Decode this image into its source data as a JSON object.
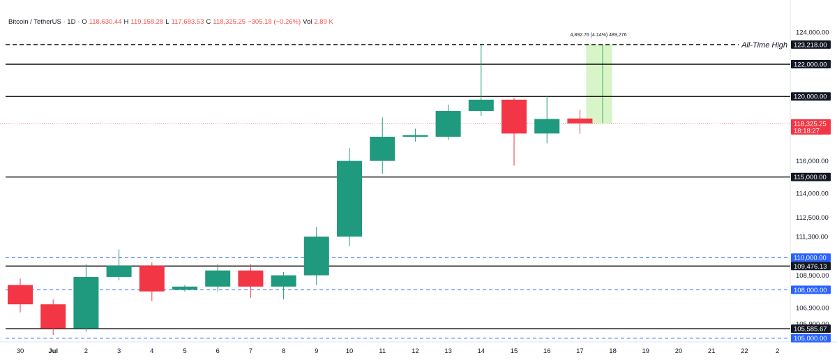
{
  "header": {
    "symbol": "Bitcoin / TetherUS · 1D ·",
    "open_label": "O",
    "open": "118,630.44",
    "high_label": "H",
    "high": "119,158.28",
    "low_label": "L",
    "low": "117,683.53",
    "close_label": "C",
    "close": "118,325.25",
    "change": "−305.18 (−0.26%)",
    "vol_label": "Vol",
    "vol": "2.89 K"
  },
  "colors": {
    "up": "#1f9a7e",
    "down": "#f23645",
    "blue_line": "#2962ff",
    "black_line": "#000000",
    "measure_fill": "#c9f2b5",
    "measure_line": "#4caf50",
    "price_tag": "#f23645"
  },
  "chart_data": {
    "type": "candlestick",
    "x_tick_labels": [
      "30",
      "Jul",
      "2",
      "3",
      "4",
      "5",
      "6",
      "7",
      "8",
      "9",
      "10",
      "11",
      "12",
      "13",
      "14",
      "15",
      "16",
      "17",
      "18",
      "19",
      "20",
      "21",
      "22",
      "2"
    ],
    "y_tick_labels": [
      "124,000.00",
      "116,000.00",
      "114,000.00",
      "112,500.00",
      "111,300.00",
      "108,900.00",
      "106,900.00",
      "105,900.00"
    ],
    "ylim": [
      104900,
      124600
    ],
    "candles": [
      {
        "date": "30",
        "o": 108300,
        "h": 108700,
        "l": 106600,
        "c": 107100
      },
      {
        "date": "Jul",
        "o": 107100,
        "h": 107400,
        "l": 105200,
        "c": 105600
      },
      {
        "date": "2",
        "o": 105600,
        "h": 109600,
        "l": 105400,
        "c": 108800
      },
      {
        "date": "3",
        "o": 108800,
        "h": 110500,
        "l": 108600,
        "c": 109500
      },
      {
        "date": "4",
        "o": 109500,
        "h": 109700,
        "l": 107300,
        "c": 107900
      },
      {
        "date": "5",
        "o": 108000,
        "h": 108300,
        "l": 107900,
        "c": 108200
      },
      {
        "date": "6",
        "o": 108200,
        "h": 109600,
        "l": 107900,
        "c": 109200
      },
      {
        "date": "7",
        "o": 109200,
        "h": 109600,
        "l": 107500,
        "c": 108200
      },
      {
        "date": "8",
        "o": 108200,
        "h": 109100,
        "l": 107400,
        "c": 108900
      },
      {
        "date": "9",
        "o": 108900,
        "h": 111900,
        "l": 108300,
        "c": 111300
      },
      {
        "date": "10",
        "o": 111300,
        "h": 116800,
        "l": 110700,
        "c": 116000
      },
      {
        "date": "11",
        "o": 116000,
        "h": 118700,
        "l": 115200,
        "c": 117500
      },
      {
        "date": "12",
        "o": 117500,
        "h": 118000,
        "l": 117200,
        "c": 117600
      },
      {
        "date": "13",
        "o": 117500,
        "h": 119500,
        "l": 117300,
        "c": 119100
      },
      {
        "date": "14",
        "o": 119100,
        "h": 123218,
        "l": 118800,
        "c": 119800
      },
      {
        "date": "15",
        "o": 119800,
        "h": 119900,
        "l": 115700,
        "c": 117700
      },
      {
        "date": "16",
        "o": 117700,
        "h": 120000,
        "l": 117100,
        "c": 118600
      },
      {
        "date": "17",
        "o": 118630.44,
        "h": 119158.28,
        "l": 117683.53,
        "c": 118325.25
      }
    ],
    "horizontal_levels": [
      {
        "value": 123218,
        "style": "dashed",
        "color": "#000000",
        "label": "123,218.00",
        "note": "All-Time High"
      },
      {
        "value": 122000,
        "style": "solid",
        "color": "#000000",
        "label": "122,000.00"
      },
      {
        "value": 120000,
        "style": "solid",
        "color": "#000000",
        "label": "120,000.00"
      },
      {
        "value": 115000,
        "style": "solid",
        "color": "#000000",
        "label": "115,000.00"
      },
      {
        "value": 110000,
        "style": "dashed",
        "color": "#2962ff",
        "label": "110,000.00"
      },
      {
        "value": 109476.13,
        "style": "solid",
        "color": "#000000",
        "label": "109,476.13"
      },
      {
        "value": 108000,
        "style": "dashed",
        "color": "#2962ff",
        "label": "108,000.00"
      },
      {
        "value": 105585.67,
        "style": "solid",
        "color": "#000000",
        "label": "105,585.67"
      },
      {
        "value": 105000,
        "style": "dashed",
        "color": "#2962ff",
        "label": "105,000.00"
      }
    ],
    "current_price": {
      "value": 118325.25,
      "label": "118,325.25",
      "countdown": "18:18:27"
    },
    "measure": {
      "from": 118325.25,
      "to": 123218,
      "label": "4,892.76 (4.14%) 489,276"
    }
  }
}
